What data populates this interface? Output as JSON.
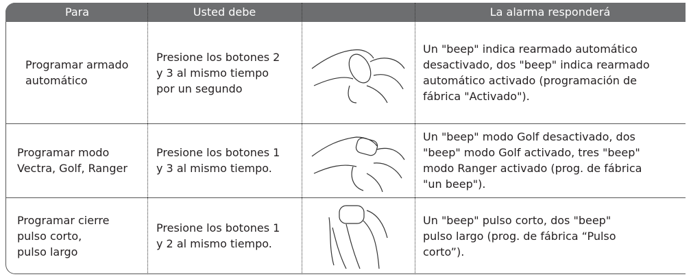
{
  "table": {
    "header": [
      "Para",
      "Usted debe",
      "La alarma responderá"
    ],
    "rows": [
      [
        [
          "Programar armado",
          "automático"
        ],
        [
          "Presione los botones 2",
          "y 3 al mismo tiempo",
          "por un segundo"
        ],
        [
          "Un \"beep\" indica rearmado automático",
          "desactivado, dos \"beep\" indica rearmado",
          "automático activado (programación de",
          "fábrica \"Activado\")."
        ]
      ],
      [
        [
          "Programar modo",
          "Vectra, Golf, Ranger"
        ],
        [
          "Presione los botones 1",
          "y 3 al mismo tiempo."
        ],
        [
          "Un \"beep\" modo Golf desactivado, dos",
          "\"beep\" modo Golf activado, tres \"beep\"",
          "modo Ranger activado (prog. de fábrica",
          "\"un beep\")."
        ]
      ],
      [
        [
          "Programar cierre",
          "pulso corto,",
          "pulso largo"
        ],
        [
          "Presione los botones 1",
          "y 2 al mismo tiempo."
        ],
        [
          "Un \"beep\" pulso corto, dos \"beep\"",
          "pulso largo  (prog. de fábrica “Pulso",
          "corto”)."
        ]
      ]
    ]
  }
}
